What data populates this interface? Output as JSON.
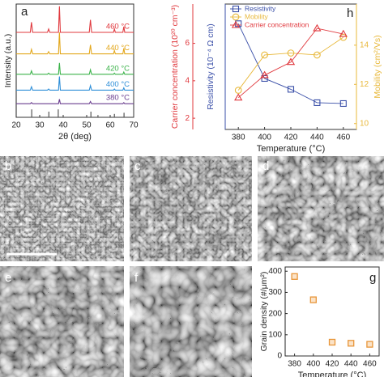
{
  "chart_data": [
    {
      "type": "line",
      "label": "a",
      "xlabel": "2θ (deg)",
      "ylabel": "Intensity (a.u.)",
      "legend": "inline",
      "xlim": [
        20,
        70
      ],
      "xticks": [
        20,
        30,
        40,
        50,
        60,
        70
      ],
      "ylim": [
        0,
        10
      ],
      "x": [
        20,
        26,
        26.5,
        27,
        33.3,
        33.8,
        34.3,
        38,
        38.4,
        38.8,
        51.1,
        51.6,
        52.1,
        61.4,
        61.8,
        62.2,
        65.4,
        65.8,
        66.2,
        70
      ],
      "series": [
        {
          "name": "460 °C",
          "color": "#e0393e",
          "values": [
            7.5,
            7.5,
            8.4,
            7.5,
            7.5,
            7.8,
            7.5,
            7.5,
            9.8,
            7.5,
            7.5,
            8.6,
            7.5,
            7.5,
            7.8,
            7.5,
            7.5,
            8.0,
            7.5,
            7.5
          ]
        },
        {
          "name": "440 °C",
          "color": "#e3a71c",
          "values": [
            5.6,
            5.6,
            6.0,
            5.6,
            5.6,
            5.8,
            5.6,
            5.6,
            7.5,
            5.6,
            5.6,
            6.4,
            5.6,
            5.6,
            5.9,
            5.6,
            5.6,
            6.1,
            5.6,
            5.6
          ]
        },
        {
          "name": "420 °C",
          "color": "#3bb34a",
          "values": [
            3.8,
            3.8,
            4.1,
            3.8,
            3.8,
            3.9,
            3.8,
            3.8,
            4.8,
            3.8,
            3.8,
            4.2,
            3.8,
            3.8,
            3.9,
            3.8,
            3.8,
            4.0,
            3.8,
            3.8
          ]
        },
        {
          "name": "400 °C",
          "color": "#2f8fd8",
          "values": [
            2.4,
            2.4,
            2.7,
            2.4,
            2.4,
            2.5,
            2.4,
            2.4,
            3.6,
            2.4,
            2.4,
            2.8,
            2.4,
            2.4,
            2.5,
            2.4,
            2.4,
            2.6,
            2.4,
            2.4
          ]
        },
        {
          "name": "380 °C",
          "color": "#6a3d8f",
          "values": [
            1.2,
            1.2,
            1.3,
            1.2,
            1.2,
            1.2,
            1.2,
            1.2,
            1.6,
            1.2,
            1.2,
            1.4,
            1.2,
            1.2,
            1.2,
            1.2,
            1.2,
            1.3,
            1.2,
            1.2
          ]
        }
      ],
      "reference": {
        "color": "#555555",
        "x": [
          26.6,
          33.9,
          37.9,
          51.8,
          54.8,
          61.8,
          65.9
        ],
        "values": [
          0.7,
          0.5,
          0.7,
          0.5,
          0.2,
          0.3,
          0.4
        ]
      }
    },
    {
      "type": "line",
      "label": "h",
      "xlabel": "Temperature (°C)",
      "legend": "upper left",
      "ylabel": "Resistivity (10⁻⁴ Ω cm)",
      "y2label": "Mobility (cm²/Vs)",
      "y3label": "Carrier concentration (10²⁰ cm⁻³)",
      "x": [
        380,
        400,
        420,
        440,
        460
      ],
      "xlim": [
        370,
        470
      ],
      "xticks": [
        380,
        400,
        420,
        440,
        460
      ],
      "ylim": [
        5,
        35
      ],
      "y2lim": [
        9.7,
        16.1
      ],
      "y2ticks": [
        10,
        12,
        14
      ],
      "y3lim": [
        1.4,
        8.1
      ],
      "y3ticks": [
        2,
        4,
        6
      ],
      "series": [
        {
          "name": "Resistivity",
          "color": "#3a4fa8",
          "marker": "square",
          "values": [
            30.3,
            17.2,
            14.6,
            11.4,
            11.2
          ]
        },
        {
          "name": "Mobility",
          "color": "#e8b83a",
          "marker": "circle",
          "axis": "y2",
          "values": [
            11.7,
            13.5,
            13.6,
            13.5,
            14.4
          ]
        },
        {
          "name": "Carrier concentration",
          "color": "#e0393e",
          "marker": "triangle",
          "axis": "y3",
          "values": [
            3.1,
            4.3,
            5.0,
            6.8,
            6.5
          ]
        }
      ]
    },
    {
      "type": "scatter",
      "label": "g",
      "xlabel": "Temperature (°C)",
      "ylabel": "Grain density (#/μm²)",
      "x": [
        380,
        400,
        420,
        440,
        460
      ],
      "values": [
        375,
        265,
        65,
        60,
        55
      ],
      "color": "#e8963a",
      "xlim": [
        370,
        470
      ],
      "xticks": [
        380,
        400,
        420,
        440,
        460
      ],
      "ylim": [
        0,
        420
      ],
      "yticks": [
        0,
        100,
        200,
        300,
        400
      ]
    }
  ],
  "image_panels": [
    {
      "label": "b"
    },
    {
      "label": "c"
    },
    {
      "label": "d"
    },
    {
      "label": "e"
    },
    {
      "label": "f"
    }
  ]
}
